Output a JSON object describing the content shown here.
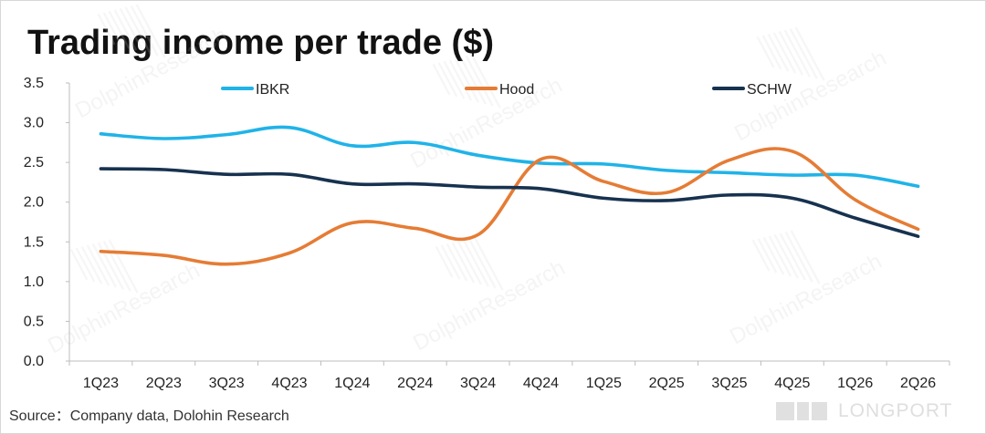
{
  "chart_data": {
    "type": "line",
    "title": "Trading income per trade ($)",
    "source": "Source：Company data,  Dolohin Research",
    "categories": [
      "1Q23",
      "2Q23",
      "3Q23",
      "4Q23",
      "1Q24",
      "2Q24",
      "3Q24",
      "4Q24",
      "1Q25",
      "2Q25",
      "3Q25",
      "4Q25",
      "1Q26",
      "2Q26"
    ],
    "series": [
      {
        "name": "IBKR",
        "color": "#20B3E8",
        "values": [
          2.86,
          2.8,
          2.85,
          2.94,
          2.71,
          2.75,
          2.59,
          2.49,
          2.48,
          2.4,
          2.37,
          2.34,
          2.34,
          2.2
        ]
      },
      {
        "name": "Hood",
        "color": "#E57C35",
        "values": [
          1.38,
          1.33,
          1.22,
          1.36,
          1.74,
          1.67,
          1.59,
          2.54,
          2.26,
          2.12,
          2.53,
          2.64,
          2.03,
          1.66
        ]
      },
      {
        "name": "SCHW",
        "color": "#17324F",
        "values": [
          2.42,
          2.41,
          2.35,
          2.35,
          2.23,
          2.23,
          2.19,
          2.17,
          2.05,
          2.02,
          2.09,
          2.05,
          1.8,
          1.57
        ]
      }
    ],
    "y_ticks": [
      "3.5",
      "3.0",
      "2.5",
      "2.0",
      "1.5",
      "1.0",
      "0.5",
      "0.0"
    ],
    "ylim": [
      0.0,
      3.5
    ],
    "grid": false,
    "legend_position": "top",
    "watermark_text": "DolphinResearch",
    "brand_text": "LONGPORT"
  }
}
